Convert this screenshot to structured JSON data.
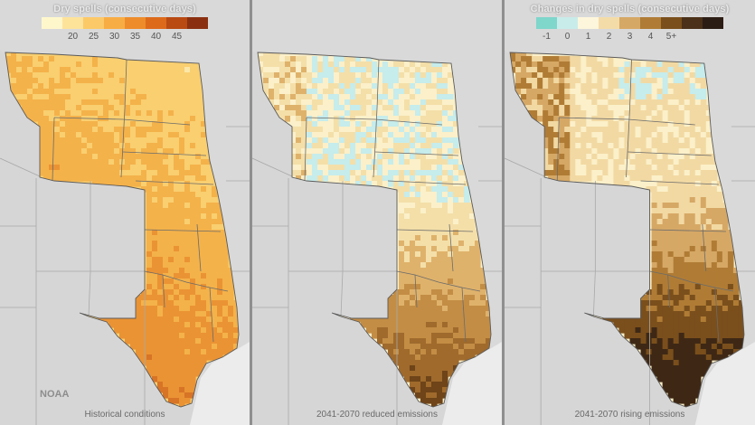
{
  "brand": "NOAA",
  "panels": [
    {
      "legend": {
        "title": "Dry spells (consecutive days)",
        "swatches": [
          "#fff7cc",
          "#fde39a",
          "#fcc968",
          "#f8ad44",
          "#ee8c2b",
          "#dd6a1b",
          "#b84a12",
          "#8a3010"
        ],
        "ticks": [
          "",
          "20",
          "25",
          "30",
          "35",
          "40",
          "45",
          ""
        ]
      },
      "caption": "Historical conditions",
      "palette": [
        "#fce7a8",
        "#f9cf70",
        "#f4b24a",
        "#ea9334",
        "#d77426",
        "#bf5818",
        "#a9451a"
      ]
    },
    {
      "legend": null,
      "caption": "2041-2070 reduced emissions",
      "palette": [
        "#c6ecec",
        "#fbf0c9",
        "#f4dfa9",
        "#dfb26b",
        "#c38d45",
        "#9f6a2c",
        "#6e4418"
      ]
    },
    {
      "legend": {
        "title": "Changes in dry spells (consecutive days)",
        "swatches": [
          "#7fd6cb",
          "#c8ecea",
          "#fdf6dc",
          "#f4dca8",
          "#d6a865",
          "#b07c35",
          "#7a4f1c",
          "#4b3119",
          "#2b1d14"
        ],
        "ticks": [
          "-1",
          "0",
          "1",
          "2",
          "3",
          "4",
          "5+",
          "",
          ""
        ]
      },
      "caption": "2041-2070 rising emissions",
      "palette": [
        "#c6ecec",
        "#fbf0c9",
        "#f2d9a3",
        "#d6a865",
        "#b07c35",
        "#7a4f1c",
        "#3e2815"
      ]
    }
  ]
}
